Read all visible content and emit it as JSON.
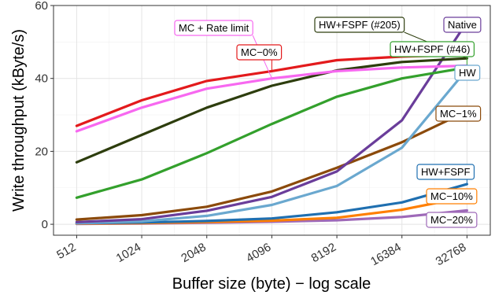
{
  "chart_data": {
    "type": "line",
    "title": "",
    "xlabel": "Buffer size (byte) − log scale",
    "ylabel": "Write throughput (kByte/s)",
    "x_scale": "log2",
    "x": [
      512,
      1024,
      2048,
      4096,
      8192,
      16384,
      32768
    ],
    "x_tick_labels": [
      "512",
      "1024",
      "2048",
      "4096",
      "8192",
      "16384",
      "32768"
    ],
    "xlim": [
      400,
      42000
    ],
    "ylim": [
      -3,
      60
    ],
    "y_ticks": [
      0,
      20,
      40,
      60
    ],
    "grid": true,
    "legend": "none (direct labels beside lines)",
    "series": [
      {
        "name": "MC−0%",
        "color": "#e31a1c",
        "values": [
          27,
          34,
          39.3,
          42,
          45,
          46,
          46.5
        ]
      },
      {
        "name": "MC + Rate limit",
        "color": "#f768f0",
        "values": [
          25.5,
          32,
          37.2,
          40,
          42,
          43,
          43.5
        ]
      },
      {
        "name": "HW+FSPF (#205)",
        "color": "#2d3d0d",
        "values": [
          17,
          24.5,
          32,
          38,
          42.2,
          44.5,
          45.5
        ]
      },
      {
        "name": "HW+FSPF (#46)",
        "color": "#33a02c",
        "values": [
          7.3,
          12.3,
          19.5,
          27.5,
          35,
          40,
          43
        ]
      },
      {
        "name": "Native",
        "color": "#6a3d9a",
        "values": [
          0.6,
          1.4,
          3.7,
          7.5,
          14.5,
          28.5,
          55.5
        ]
      },
      {
        "name": "HW",
        "color": "#6aa8cf",
        "values": [
          0.3,
          0.8,
          2.3,
          5.3,
          10.5,
          21,
          42.5
        ]
      },
      {
        "name": "MC−1%",
        "color": "#8b4a0b",
        "values": [
          1.3,
          2.5,
          4.8,
          9,
          15.5,
          22.5,
          31
        ]
      },
      {
        "name": "HW+FSPF",
        "color": "#1f6fb0",
        "values": [
          0.3,
          0.5,
          0.9,
          1.6,
          3.3,
          6,
          11
        ]
      },
      {
        "name": "MC−10%",
        "color": "#ff7f00",
        "values": [
          0.2,
          0.3,
          0.6,
          1,
          1.8,
          4,
          7.5
        ]
      },
      {
        "name": "MC−20%",
        "color": "#9e69b8",
        "values": [
          0.1,
          0.2,
          0.4,
          0.7,
          1.1,
          2,
          3.8
        ]
      }
    ],
    "annotations": [
      {
        "text": "MC + Rate limit",
        "color": "#f768f0",
        "series": "MC + Rate limit",
        "at_x": 4096
      },
      {
        "text": "MC−0%",
        "color": "#e31a1c",
        "series": "MC−0%",
        "at_x": 4096
      },
      {
        "text": "HW+FSPF (#205)",
        "color": "#2d3d0d",
        "series": "HW+FSPF (#205)",
        "at_x": 32768
      },
      {
        "text": "Native",
        "color": "#6a3d9a",
        "series": "Native",
        "at_x": 32768
      },
      {
        "text": "HW+FSPF (#46)",
        "color": "#33a02c",
        "series": "HW+FSPF (#46)",
        "at_x": 32768
      },
      {
        "text": "HW",
        "color": "#6aa8cf",
        "series": "HW",
        "at_x": 32768
      },
      {
        "text": "MC−1%",
        "color": "#8b4a0b",
        "series": "MC−1%",
        "at_x": 32768
      },
      {
        "text": "HW+FSPF",
        "color": "#1f6fb0",
        "series": "HW+FSPF",
        "at_x": 32768
      },
      {
        "text": "MC−10%",
        "color": "#ff7f00",
        "series": "MC−10%",
        "at_x": 32768
      },
      {
        "text": "MC−20%",
        "color": "#9e69b8",
        "series": "MC−20%",
        "at_x": 32768
      }
    ]
  }
}
